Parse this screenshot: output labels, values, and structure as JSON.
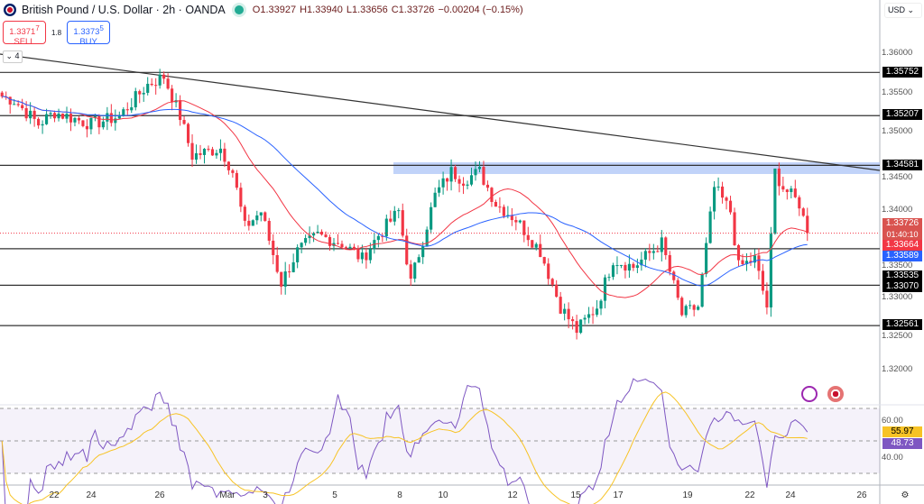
{
  "header": {
    "title": "British Pound / U.S. Dollar · 2h · OANDA",
    "open": "O1.33927",
    "high": "H1.33940",
    "low": "L1.33656",
    "close": "C1.33726",
    "change": "−0.00204 (−0.15%)"
  },
  "trade": {
    "sell_price": "1.3371",
    "sell_sup": "7",
    "sell_label": "SELL",
    "spread": "1.8",
    "buy_price": "1.3373",
    "buy_sup": "5",
    "buy_label": "BUY"
  },
  "collapse_label": "⌄ 4",
  "currency": "USD ⌄",
  "price_axis": [
    "1.36000",
    "1.35500",
    "1.35000",
    "1.34500",
    "1.34000",
    "1.33500",
    "1.33000",
    "1.32500",
    "1.32000"
  ],
  "levels": [
    "1.35752",
    "1.35207",
    "1.34581",
    "1.33070",
    "1.32561"
  ],
  "last_price": "1.33726",
  "countdown": "01:40:10",
  "ma_red": "1.33664",
  "ma_blue": "1.33589",
  "level_extra": "1.33535",
  "rsi_axis": [
    "60.00",
    "40.00"
  ],
  "rsi_value": "55.97",
  "rsi_ma": "48.73",
  "time_axis": [
    "22",
    "24",
    "26",
    "Mar",
    "3",
    "5",
    "8",
    "10",
    "12",
    "15",
    "17",
    "19",
    "22",
    "24",
    "26"
  ],
  "colors": {
    "up": "#089981",
    "down": "#f23645",
    "ma_red": "#f23645",
    "ma_blue": "#2962ff",
    "rsi": "#7e57c2",
    "rsi_ma": "#f7c325",
    "zone": "#b2c8f7"
  },
  "chart_data": {
    "type": "candlestick",
    "price_path": [
      [
        0,
        1.3545
      ],
      [
        3,
        1.354
      ],
      [
        9,
        1.351
      ],
      [
        13,
        1.3525
      ],
      [
        22,
        1.351
      ],
      [
        29,
        1.352
      ],
      [
        36,
        1.356
      ],
      [
        40,
        1.357
      ],
      [
        44,
        1.352
      ],
      [
        47,
        1.347
      ],
      [
        54,
        1.348
      ],
      [
        57,
        1.345
      ],
      [
        60,
        1.338
      ],
      [
        64,
        1.34
      ],
      [
        69,
        1.331
      ],
      [
        73,
        1.335
      ],
      [
        78,
        1.337
      ],
      [
        84,
        1.336
      ],
      [
        89,
        1.334
      ],
      [
        93,
        1.337
      ],
      [
        98,
        1.34
      ],
      [
        101,
        1.331
      ],
      [
        107,
        1.342
      ],
      [
        111,
        1.345
      ],
      [
        114,
        1.344
      ],
      [
        118,
        1.345
      ],
      [
        122,
        1.341
      ],
      [
        127,
        1.339
      ],
      [
        133,
        1.335
      ],
      [
        138,
        1.328
      ],
      [
        142,
        1.325
      ],
      [
        147,
        1.328
      ],
      [
        151,
        1.334
      ],
      [
        156,
        1.333
      ],
      [
        163,
        1.336
      ],
      [
        168,
        1.327
      ],
      [
        172,
        1.328
      ],
      [
        176,
        1.343
      ],
      [
        180,
        1.34
      ],
      [
        182,
        1.333
      ],
      [
        186,
        1.334
      ],
      [
        189,
        1.328
      ],
      [
        191,
        1.345
      ],
      [
        193,
        1.343
      ],
      [
        197,
        1.341
      ],
      [
        199,
        1.33726
      ]
    ]
  }
}
